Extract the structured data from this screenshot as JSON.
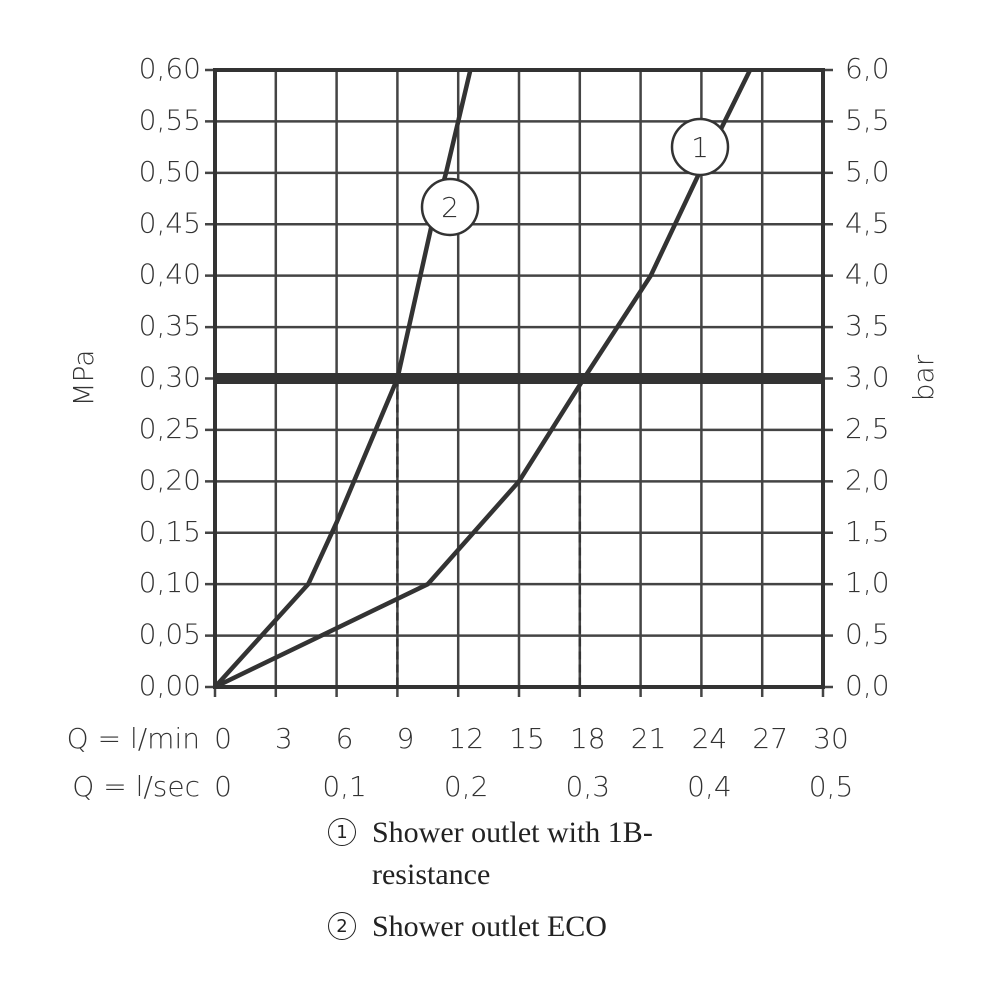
{
  "chart_data": {
    "type": "line",
    "y_label": "MPa",
    "y2_label": "bar",
    "x_label": "Q = l/min",
    "x2_label": "Q = l/sec",
    "xlim": [
      0,
      30
    ],
    "xticks": [
      0,
      3,
      6,
      9,
      12,
      15,
      18,
      21,
      24,
      27,
      30
    ],
    "x2lim": [
      0,
      0.5
    ],
    "x2ticks": [
      0,
      {
        "value": 0.1,
        "label": "0,1"
      },
      {
        "value": 0.2,
        "label": "0,2"
      },
      {
        "value": 0.3,
        "label": "0,3"
      },
      {
        "value": 0.4,
        "label": "0,4"
      },
      {
        "value": 0.5,
        "label": "0,5"
      }
    ],
    "ylim": [
      0,
      0.6
    ],
    "yticks": [
      {
        "value": 0,
        "label": "0,00"
      },
      {
        "value": 0.05,
        "label": "0,05"
      },
      {
        "value": 0.1,
        "label": "0,10"
      },
      {
        "value": 0.15,
        "label": "0,15"
      },
      {
        "value": 0.2,
        "label": "0,20"
      },
      {
        "value": 0.25,
        "label": "0,25"
      },
      {
        "value": 0.3,
        "label": "0,30"
      },
      {
        "value": 0.35,
        "label": "0,35"
      },
      {
        "value": 0.4,
        "label": "0,40"
      },
      {
        "value": 0.45,
        "label": "0,45"
      },
      {
        "value": 0.5,
        "label": "0,50"
      },
      {
        "value": 0.55,
        "label": "0,55"
      },
      {
        "value": 0.6,
        "label": "0,60"
      }
    ],
    "y2lim": [
      0,
      6
    ],
    "y2ticks": [
      {
        "value": 0,
        "label": "0,0"
      },
      {
        "value": 0.5,
        "label": "0,5"
      },
      {
        "value": 1,
        "label": "1,0"
      },
      {
        "value": 1.5,
        "label": "1,5"
      },
      {
        "value": 2,
        "label": "2,0"
      },
      {
        "value": 2.5,
        "label": "2,5"
      },
      {
        "value": 3,
        "label": "3,0"
      },
      {
        "value": 3.5,
        "label": "3,5"
      },
      {
        "value": 4,
        "label": "4,0"
      },
      {
        "value": 4.5,
        "label": "4,5"
      },
      {
        "value": 5,
        "label": "5,0"
      },
      {
        "value": 5.5,
        "label": "5,5"
      },
      {
        "value": 6,
        "label": "6,0"
      }
    ],
    "grid": true,
    "reference_line": 0.3,
    "reference_x": [
      9,
      18
    ],
    "series": [
      {
        "name": "Shower outlet with 1B-resistance",
        "label": "1",
        "color": "#333333",
        "x": [
          0,
          10.5,
          15,
          18.2,
          21.5,
          23.9,
          26.4
        ],
        "values": [
          0,
          0.1,
          0.2,
          0.3,
          0.4,
          0.5,
          0.6
        ]
      },
      {
        "name": "Shower outlet ECO",
        "label": "2",
        "color": "#333333",
        "x": [
          0,
          4.6,
          6,
          9,
          10.7,
          11.4,
          12.6
        ],
        "values": [
          0,
          0.1,
          0.16,
          0.3,
          0.45,
          0.5,
          0.6
        ]
      }
    ]
  }
}
